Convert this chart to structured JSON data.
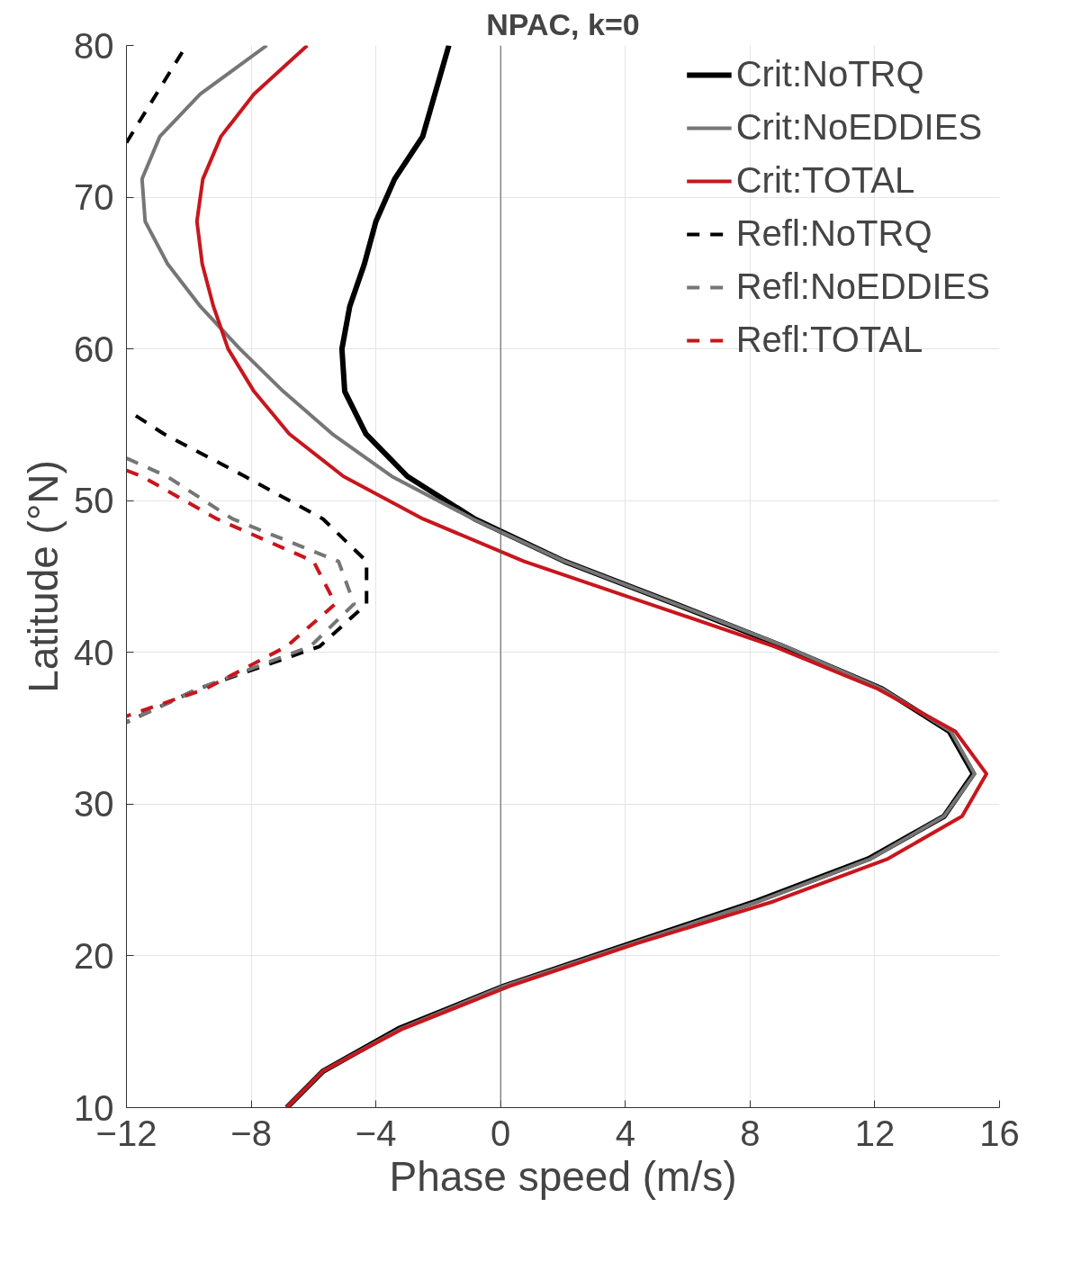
{
  "chart_data": {
    "type": "line",
    "title": "NPAC, k=0",
    "xlabel": "Phase speed (m/s)",
    "ylabel": "Latitude (°N)",
    "xlim": [
      -12,
      16
    ],
    "ylim": [
      10,
      80
    ],
    "xticks": [
      -12,
      -8,
      -4,
      0,
      4,
      8,
      12,
      16
    ],
    "yticks": [
      10,
      20,
      30,
      40,
      50,
      60,
      70,
      80
    ],
    "grid": true,
    "legend": "top right",
    "ref_lines": [
      {
        "axis": "x",
        "value": 0,
        "color": "#555555"
      }
    ],
    "series": [
      {
        "name": "Crit:NoTRQ",
        "color": "#000000",
        "line_style": "solid",
        "x": [
          -1.66,
          -2.5,
          -3.4,
          -4.0,
          -4.37,
          -4.84,
          -5.09,
          -5.0,
          -4.32,
          -2.99,
          -0.83,
          2.05,
          5.6,
          9.05,
          12.23,
          14.39,
          15.16,
          14.22,
          11.8,
          8.2,
          4.15,
          0.1,
          -3.27,
          -5.7,
          -6.86
        ],
        "values": [
          80,
          74.0,
          71.2,
          68.4,
          65.6,
          62.8,
          60.0,
          57.2,
          54.4,
          51.6,
          48.8,
          46.0,
          43.2,
          40.4,
          37.6,
          34.8,
          32.0,
          29.2,
          26.4,
          23.6,
          20.8,
          18.0,
          15.2,
          12.4,
          10
        ]
      },
      {
        "name": "Crit:NoEDDIES",
        "color": "#767676",
        "line_style": "solid",
        "x": [
          -7.5,
          -9.63,
          -10.93,
          -11.5,
          -11.4,
          -10.68,
          -9.63,
          -8.36,
          -6.97,
          -5.4,
          -3.49,
          -0.89,
          2.05,
          5.6,
          9.13,
          12.23,
          14.44,
          15.2,
          14.22,
          11.87,
          8.3,
          4.2,
          0.1,
          -3.2,
          -5.7,
          -6.86
        ],
        "values": [
          80,
          76.8,
          74.0,
          71.2,
          68.4,
          65.6,
          62.8,
          60.0,
          57.2,
          54.4,
          51.6,
          48.8,
          46.0,
          43.2,
          40.4,
          37.6,
          34.8,
          32.0,
          29.2,
          26.4,
          23.6,
          20.8,
          18.0,
          15.2,
          12.4,
          10
        ]
      },
      {
        "name": "Crit:TOTAL",
        "color": "#c8161d",
        "line_style": "solid",
        "x": [
          -6.2,
          -7.91,
          -8.97,
          -9.55,
          -9.74,
          -9.57,
          -9.21,
          -8.74,
          -7.91,
          -6.78,
          -5.04,
          -2.49,
          0.75,
          4.76,
          8.77,
          12.09,
          14.58,
          15.58,
          14.8,
          12.42,
          8.77,
          4.34,
          0.28,
          -3.13,
          -5.7,
          -6.86
        ],
        "values": [
          80,
          76.8,
          74.0,
          71.2,
          68.4,
          65.6,
          62.8,
          60.0,
          57.2,
          54.4,
          51.6,
          48.8,
          46.0,
          43.2,
          40.4,
          37.6,
          34.8,
          32.0,
          29.2,
          26.4,
          23.6,
          20.8,
          18.0,
          15.2,
          12.4,
          10
        ]
      },
      {
        "name": "Refl:NoTRQ",
        "color": "#000000",
        "line_style": "dashed",
        "x": [
          -12,
          -10.2,
          null,
          -11.7,
          -10.8,
          -8.2,
          -5.7,
          -4.3,
          -4.3,
          -5.8,
          -9.7,
          -12
        ],
        "values": [
          73.6,
          79.6,
          null,
          55.6,
          54.4,
          51.6,
          48.8,
          46.0,
          43.2,
          40.4,
          37.6,
          35.4
        ]
      },
      {
        "name": "Refl:NoEDDIES",
        "color": "#767676",
        "line_style": "dashed",
        "x": [
          -12,
          -10.7,
          -8.6,
          -5.2,
          -4.7,
          -6.1,
          -9.7,
          -12
        ],
        "values": [
          52.8,
          51.6,
          48.8,
          46.0,
          43.2,
          40.4,
          37.6,
          35.4
        ]
      },
      {
        "name": "Refl:TOTAL",
        "color": "#c8161d",
        "line_style": "dashed",
        "x": [
          -12,
          -11.5,
          -9.1,
          -6.0,
          -5.3,
          -6.86,
          -9.46,
          -12
        ],
        "values": [
          52.0,
          51.6,
          48.8,
          46.0,
          43.2,
          40.4,
          37.6,
          35.8
        ]
      }
    ]
  }
}
